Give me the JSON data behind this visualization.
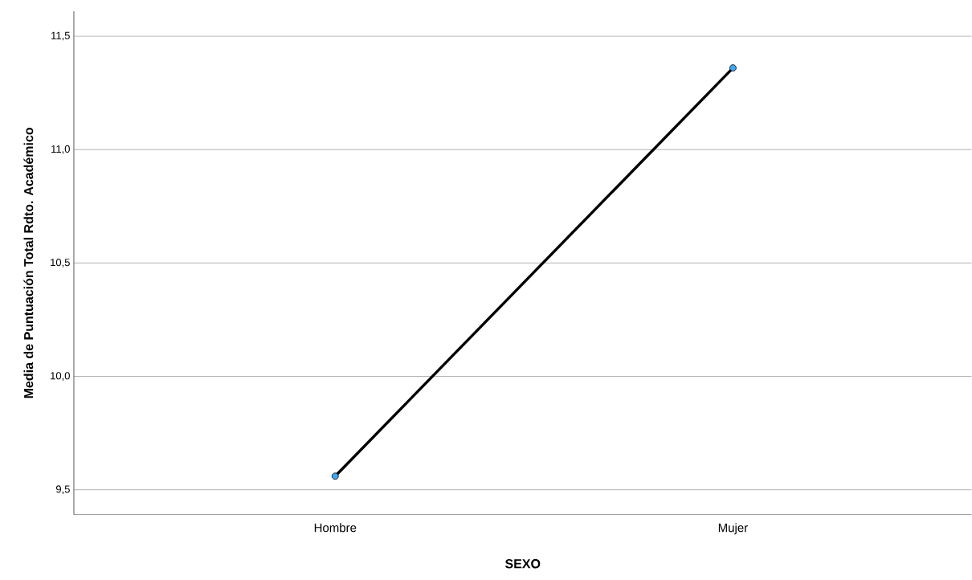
{
  "chart_data": {
    "type": "line",
    "xlabel": "SEXO",
    "ylabel": "Media de Puntuación Total Rdto. Académico",
    "categories": [
      "Hombre",
      "Mujer"
    ],
    "series": [
      {
        "color": "#000000",
        "colors": [
          "#3fa6f0",
          "#3fa6f0"
        ],
        "values": [
          9.56,
          11.36
        ]
      }
    ],
    "ylim": [
      9.39,
      11.61
    ],
    "yticks": [
      {
        "value": 9.5,
        "label": "9,5"
      },
      {
        "value": 10.0,
        "label": "10,0"
      },
      {
        "value": 10.5,
        "label": "10,5"
      },
      {
        "value": 11.0,
        "label": "11,0"
      },
      {
        "value": 11.5,
        "label": "11,5"
      }
    ],
    "grid": "y",
    "marker": "circle",
    "line_style": "solid"
  }
}
